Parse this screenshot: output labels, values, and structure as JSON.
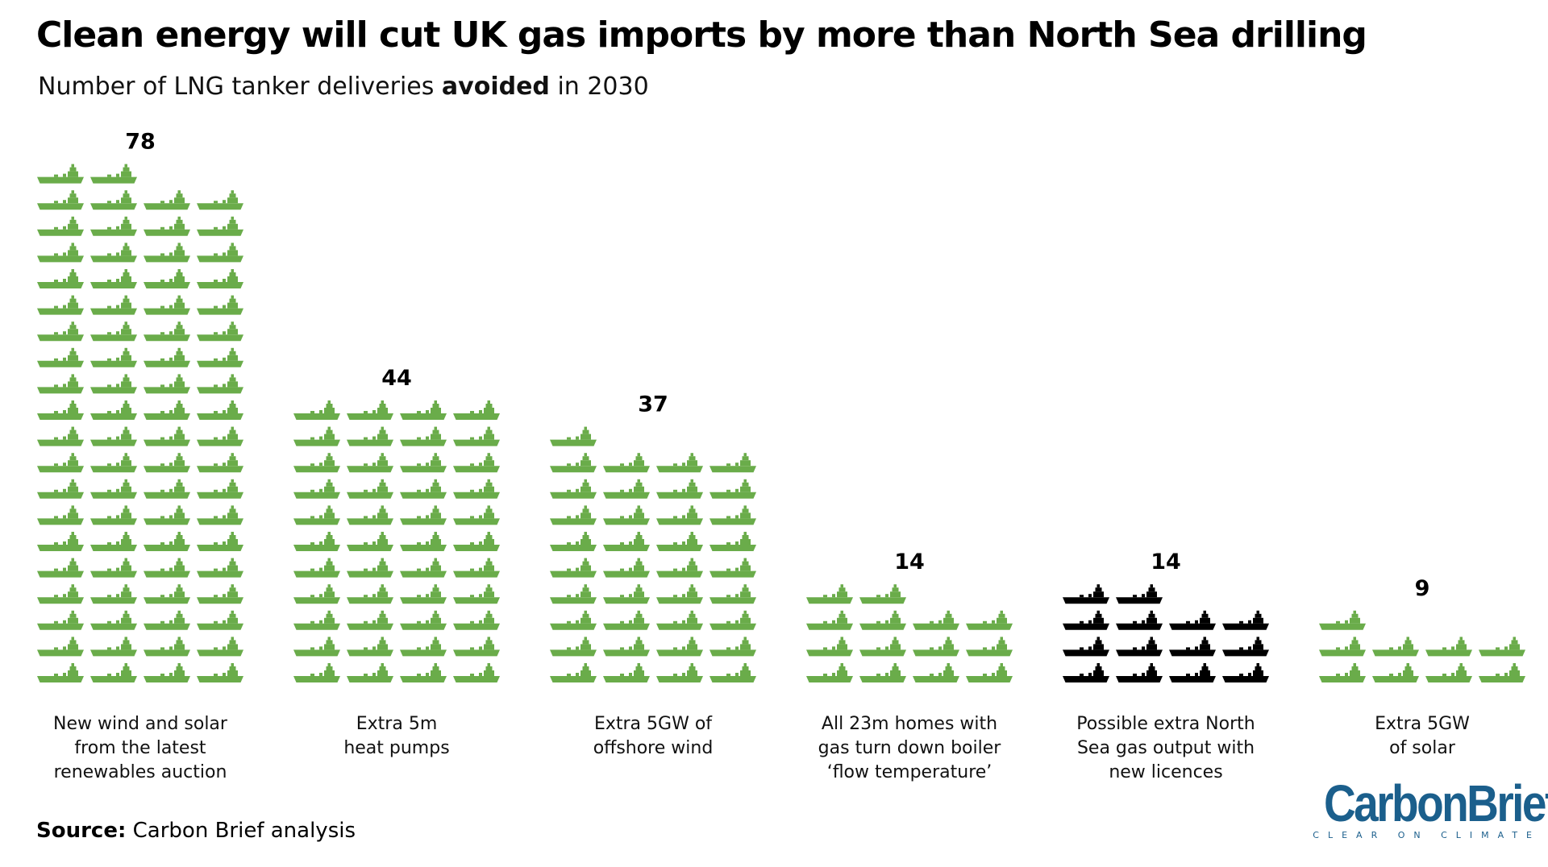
{
  "header": {
    "title": "Clean energy will cut UK gas imports by more than North Sea drilling",
    "subtitle_pre": "Number of LNG tanker deliveries ",
    "subtitle_bold": "avoided",
    "subtitle_post": " in 2030"
  },
  "chart_data": {
    "type": "pictogram",
    "title": "Clean energy will cut UK gas imports by more than North Sea drilling",
    "subtitle": "Number of LNG tanker deliveries avoided in 2030",
    "icon": "lng-tanker-icon",
    "icons_per_row": 4,
    "categories": [
      [
        "New wind and solar",
        "from the latest",
        "renewables auction"
      ],
      [
        "Extra 5m",
        "heat pumps"
      ],
      [
        "Extra 5GW of",
        "offshore wind"
      ],
      [
        "All 23m homes with",
        "gas turn down boiler",
        "‘flow temperature’"
      ],
      [
        "Possible extra North",
        "Sea gas output with",
        "new licences"
      ],
      [
        "Extra 5GW",
        "of solar"
      ]
    ],
    "values": [
      78,
      44,
      37,
      14,
      14,
      9
    ],
    "colors": [
      "#6aac4a",
      "#6aac4a",
      "#6aac4a",
      "#6aac4a",
      "#000000",
      "#6aac4a"
    ]
  },
  "footer": {
    "source_label": "Source:",
    "source_text": " Carbon Brief analysis",
    "logo_word": "CarbonBrief",
    "logo_tag": "CLEAR ON CLIMATE"
  }
}
